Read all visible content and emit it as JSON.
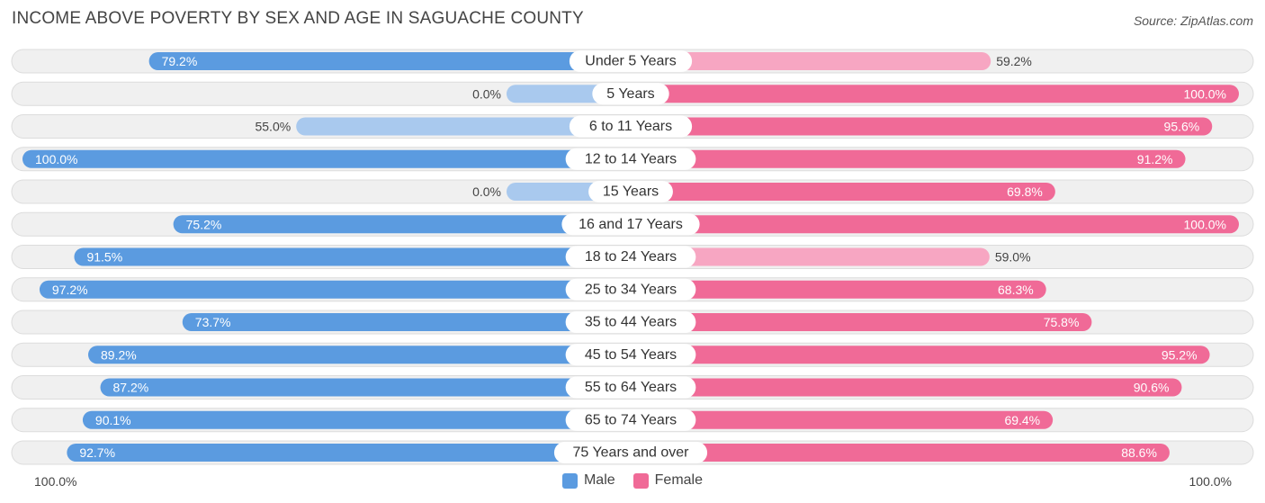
{
  "title": "INCOME ABOVE POVERTY BY SEX AND AGE IN SAGUACHE COUNTY",
  "source": "Source: ZipAtlas.com",
  "axis": {
    "left_label": "100.0%",
    "right_label": "100.0%"
  },
  "legend": {
    "male_label": "Male",
    "female_label": "Female"
  },
  "colors": {
    "male_strong": "#5b9be0",
    "male_light": "#a9c9ee",
    "female_strong": "#f06a97",
    "female_light": "#f7a6c2",
    "row_bg": "#f0f0f0",
    "row_border": "#dcdcdc"
  },
  "chart_data": {
    "type": "bar",
    "orientation": "horizontal-diverging",
    "title": "INCOME ABOVE POVERTY BY SEX AND AGE IN SAGUACHE COUNTY",
    "xlim": [
      -100,
      100
    ],
    "categories": [
      "Under 5 Years",
      "5 Years",
      "6 to 11 Years",
      "12 to 14 Years",
      "15 Years",
      "16 and 17 Years",
      "18 to 24 Years",
      "25 to 34 Years",
      "35 to 44 Years",
      "45 to 54 Years",
      "55 to 64 Years",
      "65 to 74 Years",
      "75 Years and over"
    ],
    "series": [
      {
        "name": "Male",
        "values": [
          79.2,
          0.0,
          55.0,
          100.0,
          0.0,
          75.2,
          91.5,
          97.2,
          73.7,
          89.2,
          87.2,
          90.1,
          92.7
        ],
        "labels": [
          "79.2%",
          "0.0%",
          "55.0%",
          "100.0%",
          "0.0%",
          "75.2%",
          "91.5%",
          "97.2%",
          "73.7%",
          "89.2%",
          "87.2%",
          "90.1%",
          "92.7%"
        ]
      },
      {
        "name": "Female",
        "values": [
          59.2,
          100.0,
          95.6,
          91.2,
          69.8,
          100.0,
          59.0,
          68.3,
          75.8,
          95.2,
          90.6,
          69.4,
          88.6
        ],
        "labels": [
          "59.2%",
          "100.0%",
          "95.6%",
          "91.2%",
          "69.8%",
          "100.0%",
          "59.0%",
          "68.3%",
          "75.8%",
          "95.2%",
          "90.6%",
          "69.4%",
          "88.6%"
        ]
      }
    ]
  }
}
